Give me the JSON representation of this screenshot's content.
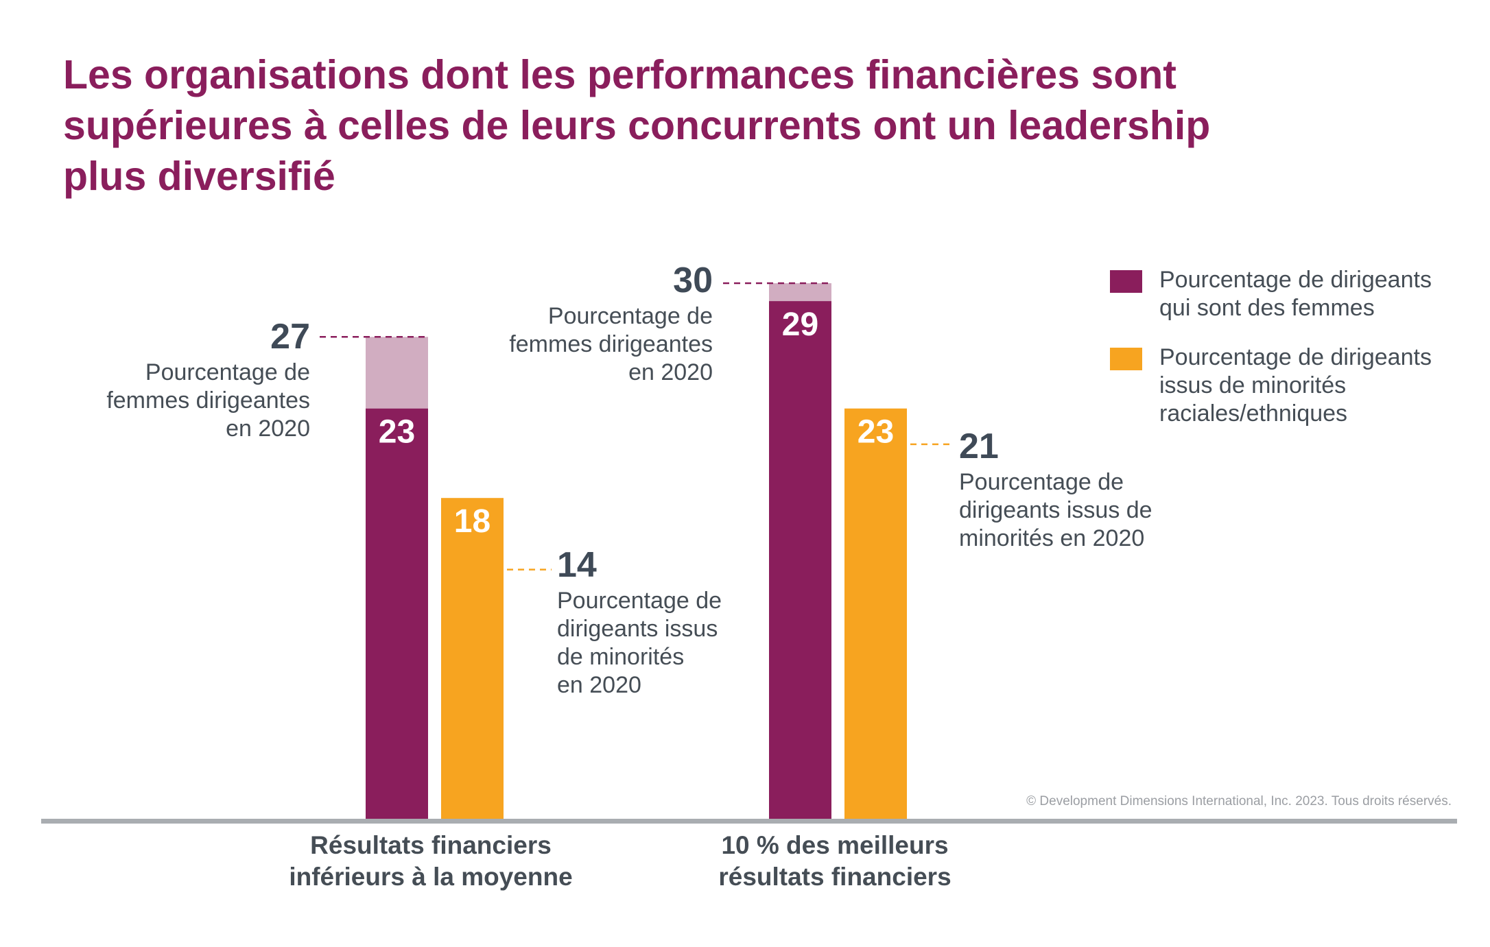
{
  "title_lines": [
    "Les organisations dont les performances financières sont",
    "supérieures à celles de leurs concurrents ont un leadership",
    "plus diversifié"
  ],
  "legend": [
    {
      "lines": [
        "Pourcentage de dirigeants",
        "qui sont des femmes"
      ],
      "color": "#8a1e5c"
    },
    {
      "lines": [
        "Pourcentage de dirigeants",
        "issus de minorités",
        "raciales/ethniques"
      ],
      "color": "#f7a420"
    }
  ],
  "copyright": "© Development Dimensions International, Inc. 2023. Tous droits réservés.",
  "colors": {
    "women": "#8a1e5c",
    "women_2020": "#d1adc1",
    "minorities": "#f7a420",
    "axis": "#a9adb1",
    "title": "#8a1e5c",
    "annotation": "#3f4a57"
  },
  "chart_data": {
    "type": "bar",
    "categories": [
      "Résultats financiers inférieurs à la moyenne",
      "10 % des meilleurs résultats financiers"
    ],
    "category_label_lines": [
      [
        "Résultats financiers",
        "inférieurs à la moyenne"
      ],
      [
        "10 % des meilleurs",
        "résultats financiers"
      ]
    ],
    "series": [
      {
        "name": "Pourcentage de dirigeants qui sont des femmes",
        "values": [
          23,
          29
        ],
        "values_2020": [
          27,
          30
        ]
      },
      {
        "name": "Pourcentage de dirigeants issus de minorités raciales/ethniques",
        "values": [
          18,
          23
        ],
        "values_2020": [
          14,
          21
        ]
      }
    ],
    "annotations": [
      {
        "value": "27",
        "lines": [
          "Pourcentage de",
          "femmes dirigeantes",
          "en 2020"
        ]
      },
      {
        "value": "14",
        "lines": [
          "Pourcentage de",
          "dirigeants issus",
          "de minorités",
          "en 2020"
        ]
      },
      {
        "value": "30",
        "lines": [
          "Pourcentage de",
          "femmes dirigeantes",
          "en 2020"
        ]
      },
      {
        "value": "21",
        "lines": [
          "Pourcentage de",
          "dirigeants issus de",
          "minorités en 2020"
        ]
      }
    ],
    "ylim": [
      0,
      30
    ],
    "grid": false,
    "legend_position": "top-right"
  }
}
